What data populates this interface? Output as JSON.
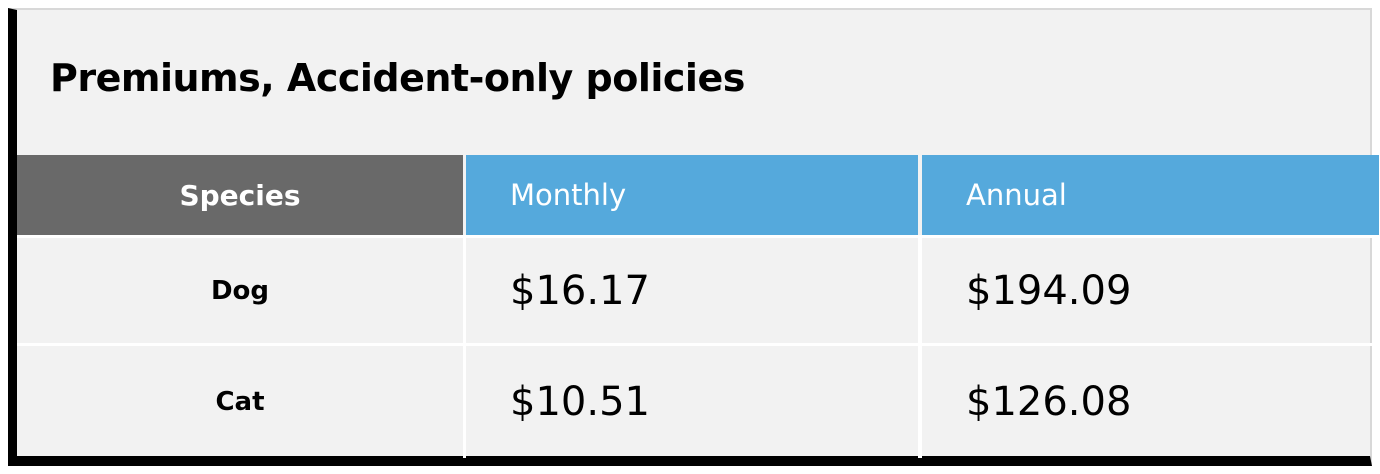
{
  "header": {
    "title": "Premiums, Accident-only policies"
  },
  "table": {
    "columns": [
      "Species",
      "Monthly",
      "Annual"
    ],
    "rows": [
      [
        "Dog",
        "$16.17",
        "$194.09"
      ],
      [
        "Cat",
        "$10.51",
        "$126.08"
      ]
    ]
  }
}
